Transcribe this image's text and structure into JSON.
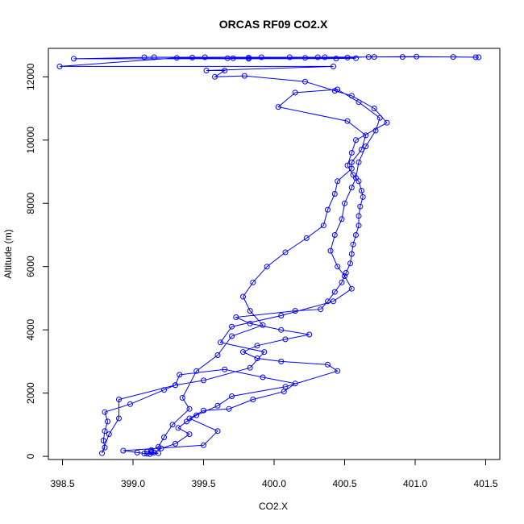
{
  "chart_data": {
    "type": "line",
    "title": "ORCAS RF09 CO2.X",
    "xlabel": "CO2.X",
    "ylabel": "Altitude (m)",
    "xlim": [
      398.4,
      401.6
    ],
    "ylim": [
      -100,
      12900
    ],
    "xticks": [
      398.5,
      399.0,
      399.5,
      400.0,
      400.5,
      401.0,
      401.5
    ],
    "xtick_labels": [
      "398.5",
      "399.0",
      "399.5",
      "400.0",
      "400.5",
      "401.0",
      "401.5"
    ],
    "yticks": [
      0,
      2000,
      4000,
      6000,
      8000,
      10000,
      12000
    ],
    "ytick_labels": [
      "0",
      "2000",
      "4000",
      "6000",
      "8000",
      "10000",
      "12000"
    ],
    "grid": false,
    "series_color": "#0000ff",
    "points": [
      {
        "x": 399.08,
        "y": 12620
      },
      {
        "x": 399.42,
        "y": 12610
      },
      {
        "x": 399.67,
        "y": 12590
      },
      {
        "x": 399.82,
        "y": 12610
      },
      {
        "x": 400.11,
        "y": 12620
      },
      {
        "x": 400.36,
        "y": 12620
      },
      {
        "x": 400.52,
        "y": 12610
      },
      {
        "x": 400.67,
        "y": 12630
      },
      {
        "x": 400.91,
        "y": 12630
      },
      {
        "x": 401.27,
        "y": 12630
      },
      {
        "x": 401.45,
        "y": 12620
      },
      {
        "x": 401.43,
        "y": 12620
      },
      {
        "x": 401.01,
        "y": 12640
      },
      {
        "x": 400.71,
        "y": 12630
      },
      {
        "x": 400.31,
        "y": 12620
      },
      {
        "x": 399.91,
        "y": 12620
      },
      {
        "x": 399.51,
        "y": 12620
      },
      {
        "x": 399.15,
        "y": 12620
      },
      {
        "x": 398.58,
        "y": 12570
      },
      {
        "x": 399.82,
        "y": 12570
      },
      {
        "x": 400.44,
        "y": 12580
      },
      {
        "x": 400.58,
        "y": 12590
      },
      {
        "x": 400.22,
        "y": 12600
      },
      {
        "x": 399.71,
        "y": 12590
      },
      {
        "x": 399.31,
        "y": 12600
      },
      {
        "x": 398.48,
        "y": 12330
      },
      {
        "x": 400.42,
        "y": 12330
      },
      {
        "x": 399.52,
        "y": 12200
      },
      {
        "x": 399.65,
        "y": 12200
      },
      {
        "x": 399.58,
        "y": 12000
      },
      {
        "x": 399.79,
        "y": 12030
      },
      {
        "x": 400.22,
        "y": 11850
      },
      {
        "x": 400.43,
        "y": 11560
      },
      {
        "x": 400.55,
        "y": 11400
      },
      {
        "x": 400.71,
        "y": 11000
      },
      {
        "x": 400.8,
        "y": 10550
      },
      {
        "x": 400.58,
        "y": 10000
      },
      {
        "x": 400.55,
        "y": 9600
      },
      {
        "x": 400.52,
        "y": 9200
      },
      {
        "x": 400.56,
        "y": 8900
      },
      {
        "x": 400.6,
        "y": 8700
      },
      {
        "x": 400.62,
        "y": 8400
      },
      {
        "x": 400.63,
        "y": 8200
      },
      {
        "x": 400.61,
        "y": 7900
      },
      {
        "x": 400.6,
        "y": 7600
      },
      {
        "x": 400.6,
        "y": 7300
      },
      {
        "x": 400.58,
        "y": 7000
      },
      {
        "x": 400.56,
        "y": 6700
      },
      {
        "x": 400.55,
        "y": 6400
      },
      {
        "x": 400.54,
        "y": 6100
      },
      {
        "x": 400.51,
        "y": 5800
      },
      {
        "x": 400.48,
        "y": 5500
      },
      {
        "x": 400.43,
        "y": 5200
      },
      {
        "x": 400.38,
        "y": 4900
      },
      {
        "x": 400.33,
        "y": 4650
      },
      {
        "x": 400.15,
        "y": 4600
      },
      {
        "x": 399.73,
        "y": 4400
      },
      {
        "x": 399.83,
        "y": 4200
      },
      {
        "x": 400.05,
        "y": 4000
      },
      {
        "x": 400.25,
        "y": 3850
      },
      {
        "x": 400.08,
        "y": 3700
      },
      {
        "x": 399.88,
        "y": 3500
      },
      {
        "x": 399.78,
        "y": 3300
      },
      {
        "x": 399.88,
        "y": 3100
      },
      {
        "x": 400.05,
        "y": 3000
      },
      {
        "x": 400.38,
        "y": 2900
      },
      {
        "x": 400.45,
        "y": 2700
      },
      {
        "x": 400.08,
        "y": 2200
      },
      {
        "x": 399.7,
        "y": 1900
      },
      {
        "x": 399.6,
        "y": 1600
      },
      {
        "x": 399.45,
        "y": 1300
      },
      {
        "x": 399.38,
        "y": 1100
      },
      {
        "x": 399.32,
        "y": 900
      },
      {
        "x": 399.4,
        "y": 700
      },
      {
        "x": 399.3,
        "y": 400
      },
      {
        "x": 399.2,
        "y": 250
      },
      {
        "x": 399.15,
        "y": 120
      },
      {
        "x": 399.1,
        "y": 80
      },
      {
        "x": 399.13,
        "y": 130
      },
      {
        "x": 399.18,
        "y": 100
      },
      {
        "x": 399.12,
        "y": 70
      },
      {
        "x": 399.08,
        "y": 90
      },
      {
        "x": 399.03,
        "y": 120
      },
      {
        "x": 398.93,
        "y": 180
      },
      {
        "x": 399.5,
        "y": 350
      },
      {
        "x": 399.6,
        "y": 800
      },
      {
        "x": 399.4,
        "y": 1200
      },
      {
        "x": 399.5,
        "y": 1450
      },
      {
        "x": 399.68,
        "y": 1500
      },
      {
        "x": 399.85,
        "y": 1800
      },
      {
        "x": 400.07,
        "y": 2050
      },
      {
        "x": 400.15,
        "y": 2300
      },
      {
        "x": 399.92,
        "y": 2500
      },
      {
        "x": 399.65,
        "y": 2750
      },
      {
        "x": 399.33,
        "y": 2580
      },
      {
        "x": 399.3,
        "y": 2250
      },
      {
        "x": 399.22,
        "y": 2100
      },
      {
        "x": 398.98,
        "y": 1650
      },
      {
        "x": 398.8,
        "y": 1400
      },
      {
        "x": 398.82,
        "y": 1100
      },
      {
        "x": 398.8,
        "y": 800
      },
      {
        "x": 398.79,
        "y": 500
      },
      {
        "x": 398.8,
        "y": 280
      },
      {
        "x": 398.78,
        "y": 100
      },
      {
        "x": 398.83,
        "y": 700
      },
      {
        "x": 398.9,
        "y": 1200
      },
      {
        "x": 398.9,
        "y": 1800
      },
      {
        "x": 399.3,
        "y": 2250
      },
      {
        "x": 399.5,
        "y": 2400
      },
      {
        "x": 399.83,
        "y": 2800
      },
      {
        "x": 399.93,
        "y": 3300
      },
      {
        "x": 399.62,
        "y": 3600
      },
      {
        "x": 399.7,
        "y": 4100
      },
      {
        "x": 400.05,
        "y": 4450
      },
      {
        "x": 400.42,
        "y": 4900
      },
      {
        "x": 400.55,
        "y": 5300
      },
      {
        "x": 400.5,
        "y": 5700
      },
      {
        "x": 400.45,
        "y": 6000
      },
      {
        "x": 400.4,
        "y": 6500
      },
      {
        "x": 400.43,
        "y": 7000
      },
      {
        "x": 400.48,
        "y": 7500
      },
      {
        "x": 400.5,
        "y": 8000
      },
      {
        "x": 400.55,
        "y": 8500
      },
      {
        "x": 400.58,
        "y": 8800
      },
      {
        "x": 400.6,
        "y": 9300
      },
      {
        "x": 400.65,
        "y": 9800
      },
      {
        "x": 400.72,
        "y": 10300
      },
      {
        "x": 400.75,
        "y": 10700
      },
      {
        "x": 400.6,
        "y": 11200
      },
      {
        "x": 400.45,
        "y": 11600
      },
      {
        "x": 400.15,
        "y": 11500
      },
      {
        "x": 400.03,
        "y": 11050
      },
      {
        "x": 400.52,
        "y": 10600
      },
      {
        "x": 400.65,
        "y": 10150
      },
      {
        "x": 400.62,
        "y": 9700
      },
      {
        "x": 400.55,
        "y": 9300
      },
      {
        "x": 400.55,
        "y": 9100
      },
      {
        "x": 400.45,
        "y": 8700
      },
      {
        "x": 400.43,
        "y": 8300
      },
      {
        "x": 400.38,
        "y": 7800
      },
      {
        "x": 400.35,
        "y": 7300
      },
      {
        "x": 400.23,
        "y": 6900
      },
      {
        "x": 400.08,
        "y": 6450
      },
      {
        "x": 399.95,
        "y": 6000
      },
      {
        "x": 399.85,
        "y": 5500
      },
      {
        "x": 399.78,
        "y": 5050
      },
      {
        "x": 399.83,
        "y": 4600
      },
      {
        "x": 399.92,
        "y": 4150
      },
      {
        "x": 399.7,
        "y": 3800
      },
      {
        "x": 399.6,
        "y": 3200
      },
      {
        "x": 399.45,
        "y": 2700
      },
      {
        "x": 399.35,
        "y": 1850
      },
      {
        "x": 399.4,
        "y": 1500
      },
      {
        "x": 399.28,
        "y": 1000
      },
      {
        "x": 399.22,
        "y": 600
      },
      {
        "x": 399.18,
        "y": 300
      },
      {
        "x": 399.13,
        "y": 200
      },
      {
        "x": 399.1,
        "y": 150
      }
    ]
  }
}
